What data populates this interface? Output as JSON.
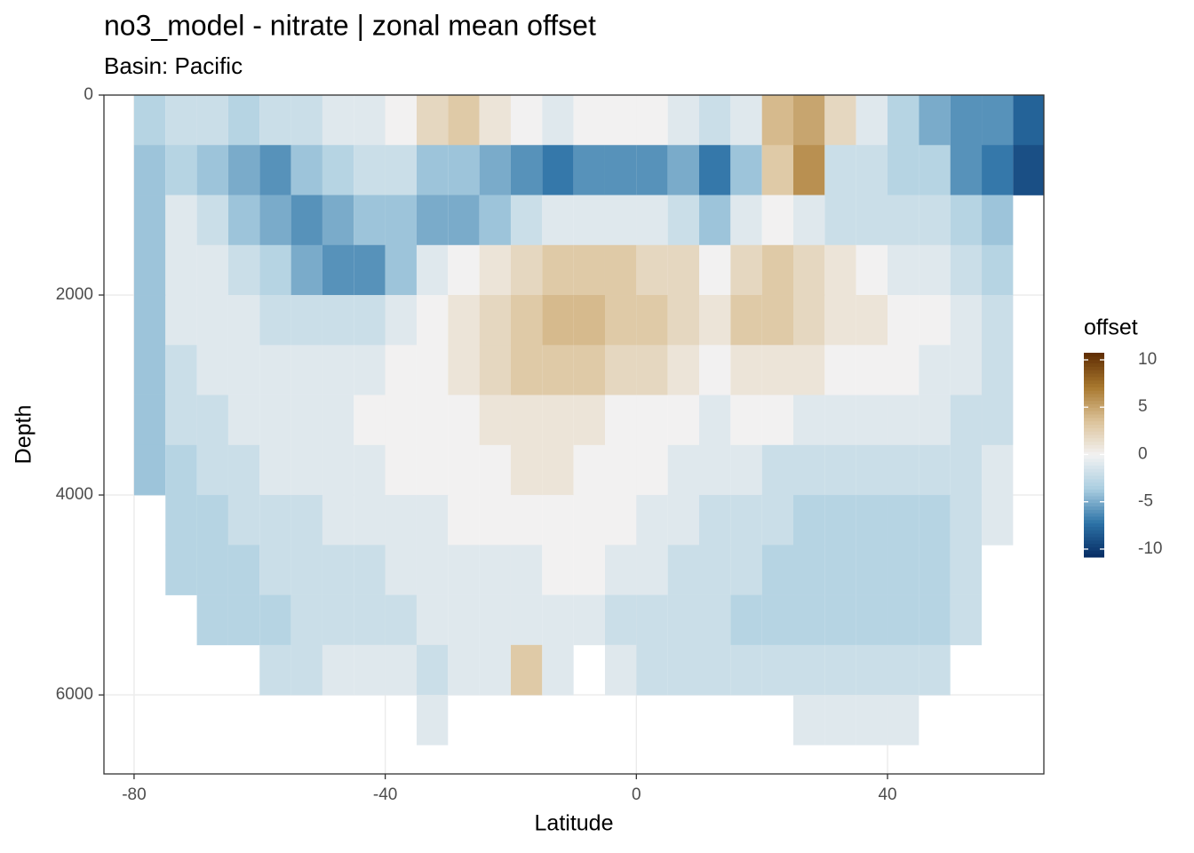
{
  "chart_data": {
    "type": "heatmap",
    "title": "no3_model - nitrate  | zonal mean offset",
    "subtitle": "Basin: Pacific",
    "x_label": "Latitude",
    "y_label": "Depth",
    "x": [
      -77.5,
      -72.5,
      -67.5,
      -62.5,
      -57.5,
      -52.5,
      -47.5,
      -42.5,
      -37.5,
      -32.5,
      -27.5,
      -22.5,
      -17.5,
      -12.5,
      -7.5,
      -2.5,
      2.5,
      7.5,
      12.5,
      17.5,
      22.5,
      27.5,
      32.5,
      37.5,
      42.5,
      47.5,
      52.5,
      57.5,
      62.5
    ],
    "y": [
      250,
      750,
      1250,
      1750,
      2250,
      2750,
      3250,
      3750,
      4250,
      4750,
      5250,
      5750,
      6250
    ],
    "values": [
      [
        -3,
        -2,
        -2,
        -3,
        -2,
        -2,
        -1,
        -1,
        0,
        2,
        3,
        1,
        0,
        -1,
        0,
        0,
        0,
        -1,
        -2,
        -1,
        4,
        5,
        2,
        -1,
        -3,
        -5,
        -6,
        -6,
        -8
      ],
      [
        -4,
        -3,
        -4,
        -5,
        -6,
        -4,
        -3,
        -2,
        -2,
        -4,
        -4,
        -5,
        -6,
        -7,
        -6,
        -6,
        -6,
        -5,
        -7,
        -4,
        3,
        6,
        -2,
        -2,
        -3,
        -3,
        -6,
        -7,
        -9
      ],
      [
        -4,
        -1,
        -2,
        -4,
        -5,
        -6,
        -5,
        -4,
        -4,
        -5,
        -5,
        -4,
        -2,
        -1,
        -1,
        -1,
        -1,
        -2,
        -4,
        -1,
        0,
        -1,
        -2,
        -2,
        -2,
        -2,
        -3,
        -4,
        null
      ],
      [
        -4,
        -1,
        -1,
        -2,
        -3,
        -5,
        -6,
        -6,
        -4,
        -1,
        0,
        1,
        2,
        3,
        3,
        3,
        2,
        2,
        0,
        2,
        3,
        2,
        1,
        0,
        -1,
        -1,
        -2,
        -3,
        null
      ],
      [
        -4,
        -1,
        -1,
        -1,
        -2,
        -2,
        -2,
        -2,
        -1,
        0,
        1,
        2,
        3,
        4,
        4,
        3,
        3,
        2,
        1,
        3,
        3,
        2,
        1,
        1,
        0,
        0,
        -1,
        -2,
        null
      ],
      [
        -4,
        -2,
        -1,
        -1,
        -1,
        -1,
        -1,
        -1,
        0,
        0,
        1,
        2,
        3,
        3,
        3,
        2,
        2,
        1,
        0,
        1,
        1,
        1,
        0,
        0,
        0,
        -1,
        -1,
        -2,
        null
      ],
      [
        -4,
        -2,
        -2,
        -1,
        -1,
        -1,
        -1,
        0,
        0,
        0,
        0,
        1,
        1,
        1,
        1,
        0,
        0,
        0,
        -1,
        0,
        0,
        -1,
        -1,
        -1,
        -1,
        -1,
        -2,
        -2,
        null
      ],
      [
        -4,
        -3,
        -2,
        -2,
        -1,
        -1,
        -1,
        -1,
        0,
        0,
        0,
        0,
        1,
        1,
        0,
        0,
        0,
        -1,
        -1,
        -1,
        -2,
        -2,
        -2,
        -2,
        -2,
        -2,
        -2,
        -1,
        null
      ],
      [
        null,
        -3,
        -3,
        -2,
        -2,
        -2,
        -1,
        -1,
        -1,
        -1,
        0,
        0,
        0,
        0,
        0,
        0,
        -1,
        -1,
        -2,
        -2,
        -2,
        -3,
        -3,
        -3,
        -3,
        -3,
        -2,
        -1,
        null
      ],
      [
        null,
        -3,
        -3,
        -3,
        -2,
        -2,
        -2,
        -2,
        -1,
        -1,
        -1,
        -1,
        -1,
        0,
        0,
        -1,
        -1,
        -2,
        -2,
        -2,
        -3,
        -3,
        -3,
        -3,
        -3,
        -3,
        -2,
        null,
        null
      ],
      [
        null,
        null,
        -3,
        -3,
        -3,
        -2,
        -2,
        -2,
        -2,
        -1,
        -1,
        -1,
        -1,
        -1,
        -1,
        -2,
        -2,
        -2,
        -2,
        -3,
        -3,
        -3,
        -3,
        -3,
        -3,
        -3,
        -2,
        null,
        null
      ],
      [
        null,
        null,
        null,
        null,
        -2,
        -2,
        -1,
        -1,
        -1,
        -2,
        -1,
        -1,
        3,
        -1,
        null,
        -1,
        -2,
        -2,
        -2,
        -2,
        -2,
        -2,
        -2,
        -2,
        -2,
        -2,
        null,
        null,
        null
      ],
      [
        null,
        null,
        null,
        null,
        null,
        null,
        null,
        null,
        null,
        -1,
        null,
        null,
        null,
        null,
        null,
        null,
        null,
        null,
        null,
        null,
        null,
        -1,
        -1,
        -1,
        -1,
        null,
        null,
        null,
        null
      ]
    ],
    "xlim": [
      -84.8,
      64.9
    ],
    "xticks": [
      -80,
      -40,
      0,
      40
    ],
    "ylim": [
      0,
      6790
    ],
    "yticks": [
      0,
      2000,
      4000,
      6000
    ],
    "y_reversed": true,
    "grid": true,
    "legend": {
      "title": "offset",
      "ticks": [
        10,
        5,
        0,
        -5,
        -10
      ],
      "limits": [
        -10.85,
        10.75
      ],
      "colors": [
        "#062b63",
        "#2c72a6",
        "#a9cde0",
        "#f2f2f2",
        "#dcc39a",
        "#a8782e",
        "#5e2c03"
      ]
    }
  }
}
